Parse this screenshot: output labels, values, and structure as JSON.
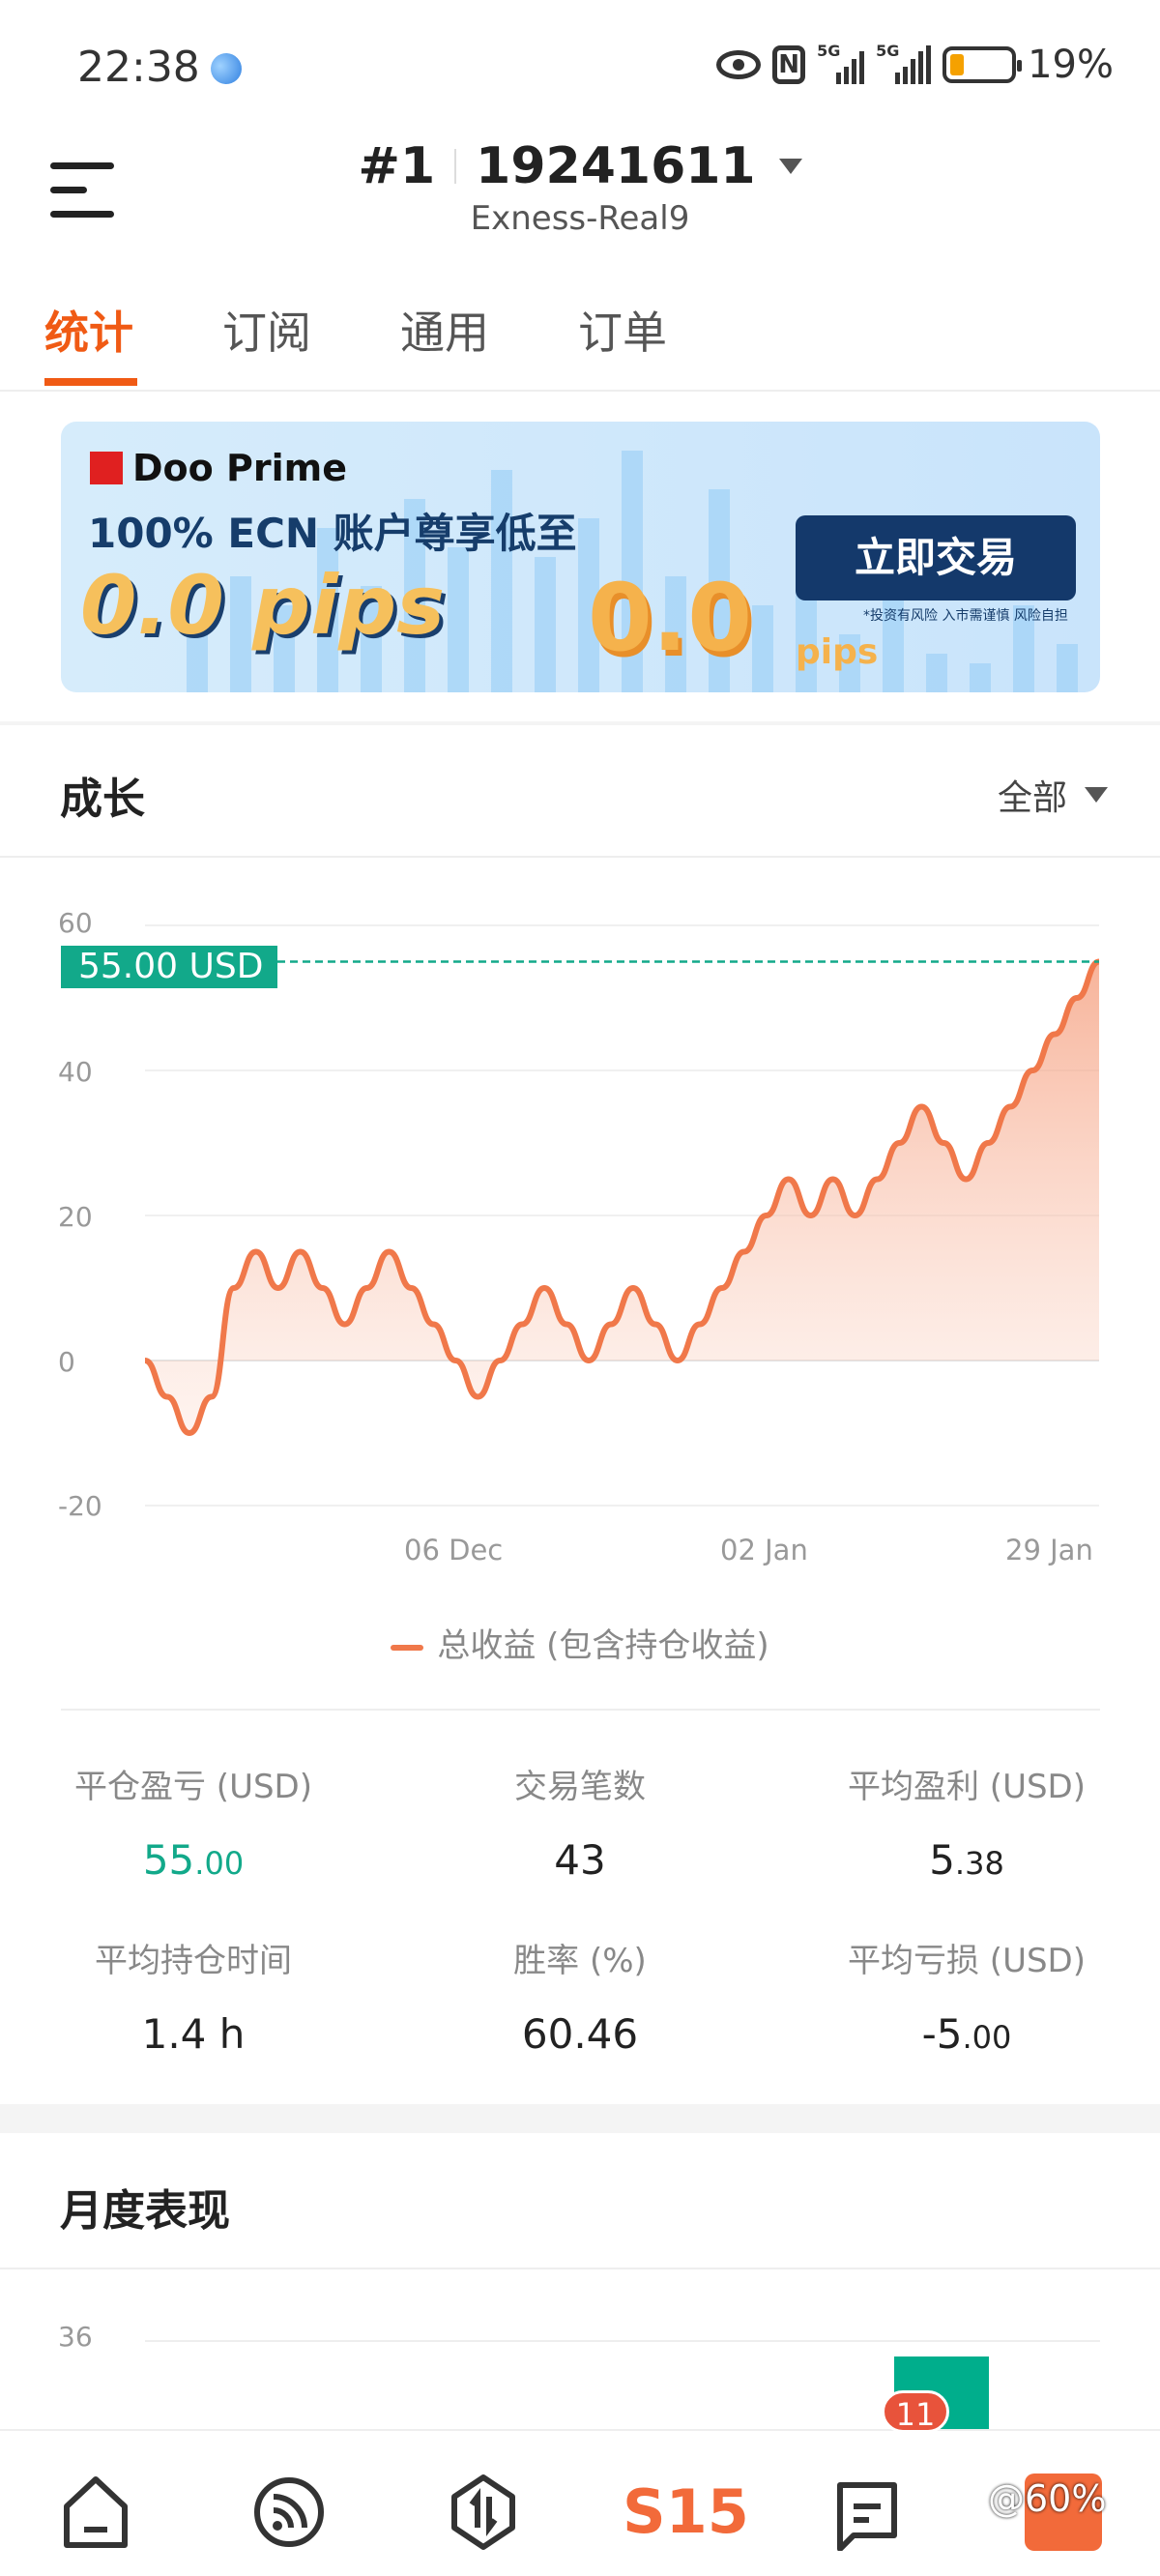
{
  "status_bar": {
    "time": "22:38",
    "signal1": "5G",
    "signal2": "5G",
    "battery": "19%",
    "battery_level": 0.19
  },
  "header": {
    "account_index": "#1",
    "account_number": "19241611",
    "server": "Exness-Real9"
  },
  "tabs": [
    {
      "label": "统计",
      "active": true
    },
    {
      "label": "订阅"
    },
    {
      "label": "通用"
    },
    {
      "label": "订单"
    }
  ],
  "banner": {
    "brand": "Doo Prime",
    "headline": "100% ECN 账户尊享低至",
    "pips": "0.0 pips",
    "big_number": "0.0",
    "big_unit": "pips",
    "cta": "立即交易",
    "disclaimer": "*投资有风险 入市需谨慎 风险自担"
  },
  "growth": {
    "title": "成长",
    "filter": "全部",
    "current_value_label": "55.00 USD",
    "legend": "总收益 (包含持仓收益)"
  },
  "chart_data": {
    "type": "area",
    "title": "",
    "xlabel": "",
    "ylabel": "",
    "ylim": [
      -20,
      60
    ],
    "y_ticks": [
      "60",
      "40",
      "20",
      "0",
      "-20"
    ],
    "x_ticks": [
      {
        "label": "06 Dec",
        "at": 14
      },
      {
        "label": "02 Jan",
        "at": 28
      },
      {
        "label": "29 Jan",
        "at": 43
      }
    ],
    "grid": true,
    "series": [
      {
        "name": "总收益 (包含持仓收益)",
        "color": "#f0784a",
        "values": [
          0,
          -5,
          -10,
          -5,
          10,
          15,
          10,
          15,
          10,
          5,
          10,
          15,
          10,
          5,
          0,
          -5,
          0,
          5,
          10,
          5,
          0,
          5,
          10,
          5,
          0,
          5,
          10,
          15,
          20,
          25,
          20,
          25,
          20,
          25,
          30,
          35,
          30,
          25,
          30,
          35,
          40,
          45,
          50,
          55
        ]
      }
    ],
    "reference_line": {
      "value": 55,
      "label": "55.00 USD",
      "color": "#12a98a"
    }
  },
  "stats": [
    {
      "label": "平仓盈亏 (USD)",
      "int": "55",
      "dec": ".00",
      "color": "#12a98a"
    },
    {
      "label": "交易笔数",
      "int": "43",
      "dec": ""
    },
    {
      "label": "平均盈利 (USD)",
      "int": "5",
      "dec": ".38"
    },
    {
      "label": "平均持仓时间",
      "int": "1.4 h",
      "dec": ""
    },
    {
      "label": "胜率 (%)",
      "int": "60.46",
      "dec": ""
    },
    {
      "label": "平均亏损 (USD)",
      "int": "-5",
      "dec": ".00"
    }
  ],
  "monthly": {
    "title": "月度表现",
    "y_tick": "36",
    "bar_color": "#00ae8c"
  },
  "bottom_nav": {
    "items": [
      "home",
      "feed",
      "trade",
      "S15",
      "messages",
      "profile"
    ],
    "s15_label": "S15",
    "messages_badge": "11",
    "overlay_text": "@60%"
  }
}
